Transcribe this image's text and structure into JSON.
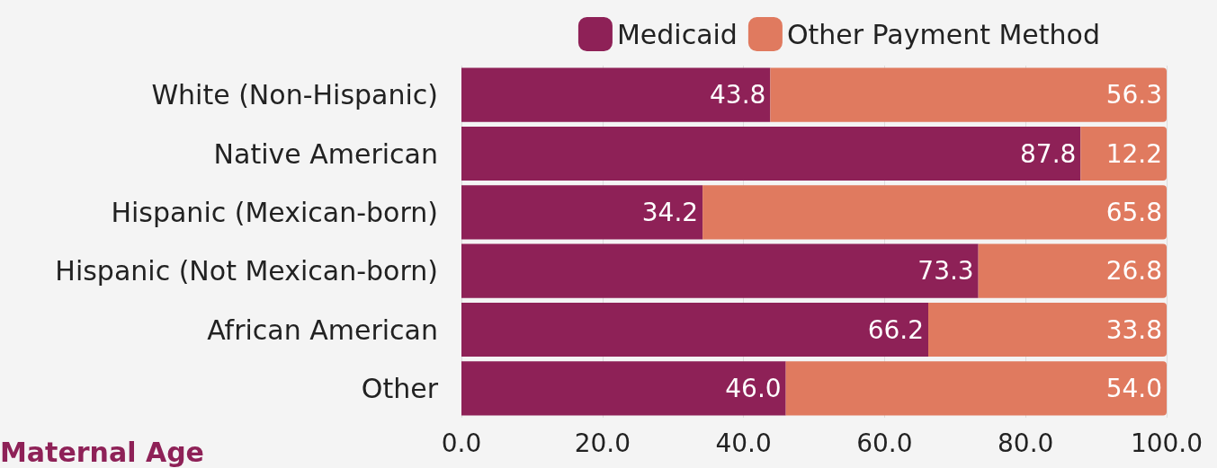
{
  "chart_data": {
    "type": "bar",
    "orientation": "horizontal",
    "stacked": true,
    "categories": [
      "White (Non-Hispanic)",
      "Native American",
      "Hispanic (Mexican-born)",
      "Hispanic (Not Mexican-born)",
      "African American",
      "Other"
    ],
    "series": [
      {
        "name": "Medicaid",
        "color": "#8e2157",
        "values": [
          43.8,
          87.8,
          34.2,
          73.3,
          66.2,
          46.0
        ],
        "value_labels": [
          "43.8",
          "87.8",
          "34.2",
          "73.3",
          "66.2",
          "46.0"
        ]
      },
      {
        "name": "Other Payment Method",
        "color": "#e07a5f",
        "values": [
          56.3,
          12.2,
          65.8,
          26.8,
          33.8,
          54.0
        ],
        "value_labels": [
          "56.3",
          "12.2",
          "65.8",
          "26.8",
          "33.8",
          "54.0"
        ]
      }
    ],
    "xlim": [
      0,
      100
    ],
    "xticks": [
      {
        "value": 0,
        "label": "0.0"
      },
      {
        "value": 20,
        "label": "20.0"
      },
      {
        "value": 40,
        "label": "40.0"
      },
      {
        "value": 60,
        "label": "60.0"
      },
      {
        "value": 80,
        "label": "80.0"
      },
      {
        "value": 100,
        "label": "100.0"
      }
    ],
    "grid": "x",
    "legend": "top right",
    "annotations": [
      "Maternal Age"
    ]
  }
}
